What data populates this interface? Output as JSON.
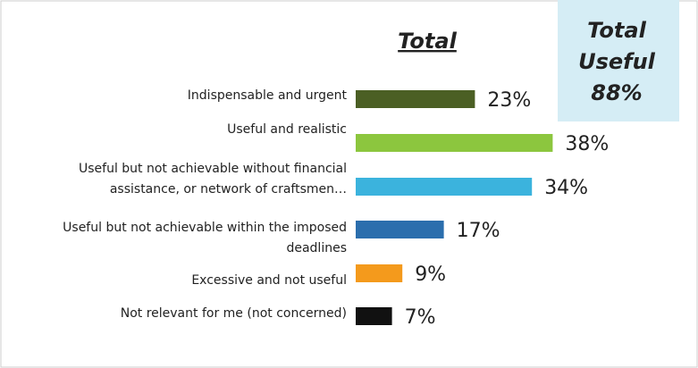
{
  "chart_data": {
    "type": "bar",
    "orientation": "horizontal",
    "title": "Total",
    "annotation": [
      "Total",
      "Useful",
      "88%"
    ],
    "categories": [
      "Indispensable and urgent",
      "Useful and realistic",
      "Useful but not achievable without financial assistance, or network of craftsmen…",
      "Useful but not achievable within the imposed deadlines",
      "Excessive and not useful",
      "Not relevant for me (not concerned)"
    ],
    "values": [
      23,
      38,
      34,
      17,
      9,
      7
    ],
    "value_labels": [
      "23%",
      "38%",
      "34%",
      "17%",
      "9%",
      "7%"
    ],
    "colors": [
      "#4b5f24",
      "#8cc63e",
      "#3bb3dd",
      "#2b6ead",
      "#f49a1c",
      "#111111"
    ]
  }
}
